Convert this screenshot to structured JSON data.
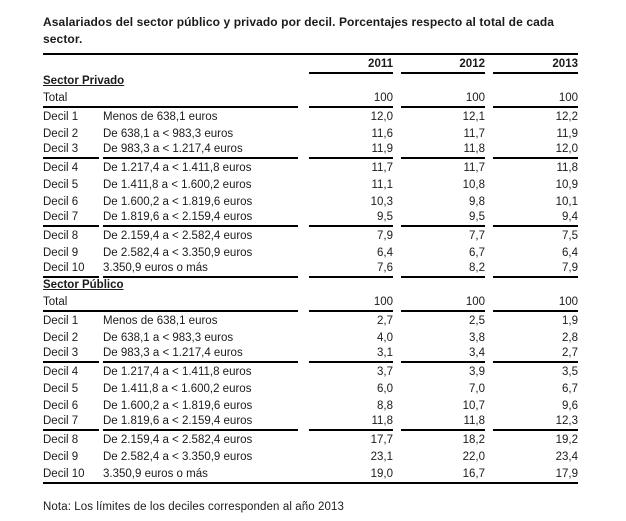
{
  "title": "Asalariados del sector público y privado por decil. Porcentajes respecto al total de cada sector.",
  "note": "Nota: Los límites de los deciles corresponden al año 2013",
  "years": [
    "2011",
    "2012",
    "2013"
  ],
  "colors": {
    "text": "#1b1b1b",
    "rule": "#000000",
    "background": "#ffffff"
  },
  "chart_data": {
    "type": "table",
    "title": "Asalariados del sector público y privado por decil. Porcentajes respecto al total de cada sector.",
    "columns": [
      "2011",
      "2012",
      "2013"
    ]
  },
  "sections": [
    {
      "name": "Sector Privado",
      "rows": [
        {
          "label": "Total",
          "range": "",
          "values": [
            "100",
            "100",
            "100"
          ],
          "separator": true
        },
        {
          "label": "Decil 1",
          "range": "Menos de 638,1 euros",
          "values": [
            "12,0",
            "12,1",
            "12,2"
          ],
          "separator": false
        },
        {
          "label": "Decil 2",
          "range": "De 638,1 a < 983,3  euros",
          "values": [
            "11,6",
            "11,7",
            "11,9"
          ],
          "separator": false
        },
        {
          "label": "Decil 3",
          "range": "De 983,3 a < 1.217,4  euros",
          "values": [
            "11,9",
            "11,8",
            "12,0"
          ],
          "separator": true
        },
        {
          "label": "Decil 4",
          "range": "De 1.217,4 a < 1.411,8  euros",
          "values": [
            "11,7",
            "11,7",
            "11,8"
          ],
          "separator": false
        },
        {
          "label": "Decil 5",
          "range": "De 1.411,8 a < 1.600,2  euros",
          "values": [
            "11,1",
            "10,8",
            "10,9"
          ],
          "separator": false
        },
        {
          "label": "Decil 6",
          "range": "De 1.600,2 a < 1.819,6  euros",
          "values": [
            "10,3",
            "9,8",
            "10,1"
          ],
          "separator": false
        },
        {
          "label": "Decil 7",
          "range": "De 1.819,6 a < 2.159,4  euros",
          "values": [
            "9,5",
            "9,5",
            "9,4"
          ],
          "separator": true
        },
        {
          "label": "Decil 8",
          "range": "De 2.159,4 a < 2.582,4  euros",
          "values": [
            "7,9",
            "7,7",
            "7,5"
          ],
          "separator": false
        },
        {
          "label": "Decil 9",
          "range": "De 2.582,4 a < 3.350,9  euros",
          "values": [
            "6,4",
            "6,7",
            "6,4"
          ],
          "separator": false
        },
        {
          "label": "Decil 10",
          "range": "3.350,9  euros o más",
          "values": [
            "7,6",
            "8,2",
            "7,9"
          ],
          "separator": true
        }
      ]
    },
    {
      "name": "Sector Público",
      "rows": [
        {
          "label": "Total",
          "range": "",
          "values": [
            "100",
            "100",
            "100"
          ],
          "separator": true
        },
        {
          "label": "Decil 1",
          "range": "Menos de 638,1 euros",
          "values": [
            "2,7",
            "2,5",
            "1,9"
          ],
          "separator": false
        },
        {
          "label": "Decil 2",
          "range": "De 638,1 a < 983,3  euros",
          "values": [
            "4,0",
            "3,8",
            "2,8"
          ],
          "separator": false
        },
        {
          "label": "Decil 3",
          "range": "De 983,3 a < 1.217,4  euros",
          "values": [
            "3,1",
            "3,4",
            "2,7"
          ],
          "separator": true
        },
        {
          "label": "Decil 4",
          "range": "De 1.217,4 a < 1.411,8  euros",
          "values": [
            "3,7",
            "3,9",
            "3,5"
          ],
          "separator": false
        },
        {
          "label": "Decil 5",
          "range": "De 1.411,8 a < 1.600,2  euros",
          "values": [
            "6,0",
            "7,0",
            "6,7"
          ],
          "separator": false
        },
        {
          "label": "Decil 6",
          "range": "De 1.600,2 a < 1.819,6  euros",
          "values": [
            "8,8",
            "10,7",
            "9,6"
          ],
          "separator": false
        },
        {
          "label": "Decil 7",
          "range": "De 1.819,6 a < 2.159,4  euros",
          "values": [
            "11,8",
            "11,8",
            "12,3"
          ],
          "separator": true
        },
        {
          "label": "Decil 8",
          "range": "De 2.159,4 a < 2.582,4  euros",
          "values": [
            "17,7",
            "18,2",
            "19,2"
          ],
          "separator": false
        },
        {
          "label": "Decil 9",
          "range": "De 2.582,4 a < 3.350,9  euros",
          "values": [
            "23,1",
            "22,0",
            "23,4"
          ],
          "separator": false
        },
        {
          "label": "Decil 10",
          "range": "3.350,9  euros o más",
          "values": [
            "19,0",
            "16,7",
            "17,9"
          ],
          "separator": false
        }
      ]
    }
  ]
}
